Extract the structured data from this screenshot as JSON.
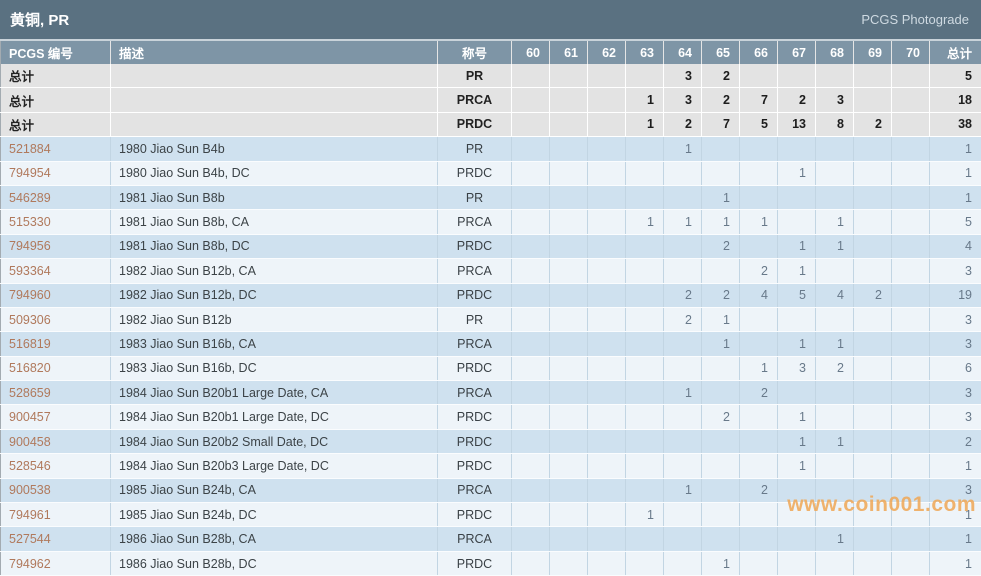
{
  "titlebar": {
    "title": "黄铜, PR",
    "brand": "PCGS Photograde"
  },
  "colors": {
    "titlebar_bg": "#5a7181",
    "header_bg": "#7e95a6",
    "summary_bg": "#e3e3e3",
    "row_blue": "#cfe1ef",
    "row_light": "#eef4f9",
    "pcgs_link": "#b0795c",
    "watermark": "#f0a755"
  },
  "table": {
    "columns": {
      "pcgs": "PCGS 编号",
      "desc": "描述",
      "desig": "称号",
      "grades": [
        "60",
        "61",
        "62",
        "63",
        "64",
        "65",
        "66",
        "67",
        "68",
        "69",
        "70"
      ],
      "total": "总计"
    },
    "summary_rows": [
      {
        "label": "总计",
        "desc": "",
        "desig": "PR",
        "grades": [
          "",
          "",
          "",
          "",
          "3",
          "2",
          "",
          "",
          "",
          "",
          ""
        ],
        "total": "5"
      },
      {
        "label": "总计",
        "desc": "",
        "desig": "PRCA",
        "grades": [
          "",
          "",
          "",
          "1",
          "3",
          "2",
          "7",
          "2",
          "3",
          "",
          ""
        ],
        "total": "18"
      },
      {
        "label": "总计",
        "desc": "",
        "desig": "PRDC",
        "grades": [
          "",
          "",
          "",
          "1",
          "2",
          "7",
          "5",
          "13",
          "8",
          "2",
          ""
        ],
        "total": "38"
      }
    ],
    "rows": [
      {
        "pcgs": "521884",
        "desc": "1980 Jiao Sun B4b",
        "desig": "PR",
        "grades": [
          "",
          "",
          "",
          "",
          "1",
          "",
          "",
          "",
          "",
          "",
          ""
        ],
        "total": "1"
      },
      {
        "pcgs": "794954",
        "desc": "1980 Jiao Sun B4b, DC",
        "desig": "PRDC",
        "grades": [
          "",
          "",
          "",
          "",
          "",
          "",
          "",
          "1",
          "",
          "",
          ""
        ],
        "total": "1"
      },
      {
        "pcgs": "546289",
        "desc": "1981 Jiao Sun B8b",
        "desig": "PR",
        "grades": [
          "",
          "",
          "",
          "",
          "",
          "1",
          "",
          "",
          "",
          "",
          ""
        ],
        "total": "1"
      },
      {
        "pcgs": "515330",
        "desc": "1981 Jiao Sun B8b, CA",
        "desig": "PRCA",
        "grades": [
          "",
          "",
          "",
          "1",
          "1",
          "1",
          "1",
          "",
          "1",
          "",
          ""
        ],
        "total": "5"
      },
      {
        "pcgs": "794956",
        "desc": "1981 Jiao Sun B8b, DC",
        "desig": "PRDC",
        "grades": [
          "",
          "",
          "",
          "",
          "",
          "2",
          "",
          "1",
          "1",
          "",
          ""
        ],
        "total": "4"
      },
      {
        "pcgs": "593364",
        "desc": "1982 Jiao Sun B12b, CA",
        "desig": "PRCA",
        "grades": [
          "",
          "",
          "",
          "",
          "",
          "",
          "2",
          "1",
          "",
          "",
          ""
        ],
        "total": "3"
      },
      {
        "pcgs": "794960",
        "desc": "1982 Jiao Sun B12b, DC",
        "desig": "PRDC",
        "grades": [
          "",
          "",
          "",
          "",
          "2",
          "2",
          "4",
          "5",
          "4",
          "2",
          ""
        ],
        "total": "19"
      },
      {
        "pcgs": "509306",
        "desc": "1982 Jiao Sun B12b",
        "desig": "PR",
        "grades": [
          "",
          "",
          "",
          "",
          "2",
          "1",
          "",
          "",
          "",
          "",
          ""
        ],
        "total": "3"
      },
      {
        "pcgs": "516819",
        "desc": "1983 Jiao Sun B16b, CA",
        "desig": "PRCA",
        "grades": [
          "",
          "",
          "",
          "",
          "",
          "1",
          "",
          "1",
          "1",
          "",
          ""
        ],
        "total": "3"
      },
      {
        "pcgs": "516820",
        "desc": "1983 Jiao Sun B16b, DC",
        "desig": "PRDC",
        "grades": [
          "",
          "",
          "",
          "",
          "",
          "",
          "1",
          "3",
          "2",
          "",
          ""
        ],
        "total": "6"
      },
      {
        "pcgs": "528659",
        "desc": "1984 Jiao Sun B20b1 Large Date, CA",
        "desig": "PRCA",
        "grades": [
          "",
          "",
          "",
          "",
          "1",
          "",
          "2",
          "",
          "",
          "",
          ""
        ],
        "total": "3"
      },
      {
        "pcgs": "900457",
        "desc": "1984 Jiao Sun B20b1 Large Date, DC",
        "desig": "PRDC",
        "grades": [
          "",
          "",
          "",
          "",
          "",
          "2",
          "",
          "1",
          "",
          "",
          ""
        ],
        "total": "3"
      },
      {
        "pcgs": "900458",
        "desc": "1984 Jiao Sun B20b2 Small Date, DC",
        "desig": "PRDC",
        "grades": [
          "",
          "",
          "",
          "",
          "",
          "",
          "",
          "1",
          "1",
          "",
          ""
        ],
        "total": "2"
      },
      {
        "pcgs": "528546",
        "desc": "1984 Jiao Sun B20b3 Large Date, DC",
        "desig": "PRDC",
        "grades": [
          "",
          "",
          "",
          "",
          "",
          "",
          "",
          "1",
          "",
          "",
          ""
        ],
        "total": "1"
      },
      {
        "pcgs": "900538",
        "desc": "1985 Jiao Sun B24b, CA",
        "desig": "PRCA",
        "grades": [
          "",
          "",
          "",
          "",
          "1",
          "",
          "2",
          "",
          "",
          "",
          ""
        ],
        "total": "3"
      },
      {
        "pcgs": "794961",
        "desc": "1985 Jiao Sun B24b, DC",
        "desig": "PRDC",
        "grades": [
          "",
          "",
          "",
          "1",
          "",
          "",
          "",
          "",
          "",
          "",
          ""
        ],
        "total": "1"
      },
      {
        "pcgs": "527544",
        "desc": "1986 Jiao Sun B28b, CA",
        "desig": "PRCA",
        "grades": [
          "",
          "",
          "",
          "",
          "",
          "",
          "",
          "",
          "1",
          "",
          ""
        ],
        "total": "1"
      },
      {
        "pcgs": "794962",
        "desc": "1986 Jiao Sun B28b, DC",
        "desig": "PRDC",
        "grades": [
          "",
          "",
          "",
          "",
          "",
          "1",
          "",
          "",
          "",
          "",
          ""
        ],
        "total": "1"
      }
    ]
  },
  "watermark": {
    "text": "www.coin001.com"
  }
}
